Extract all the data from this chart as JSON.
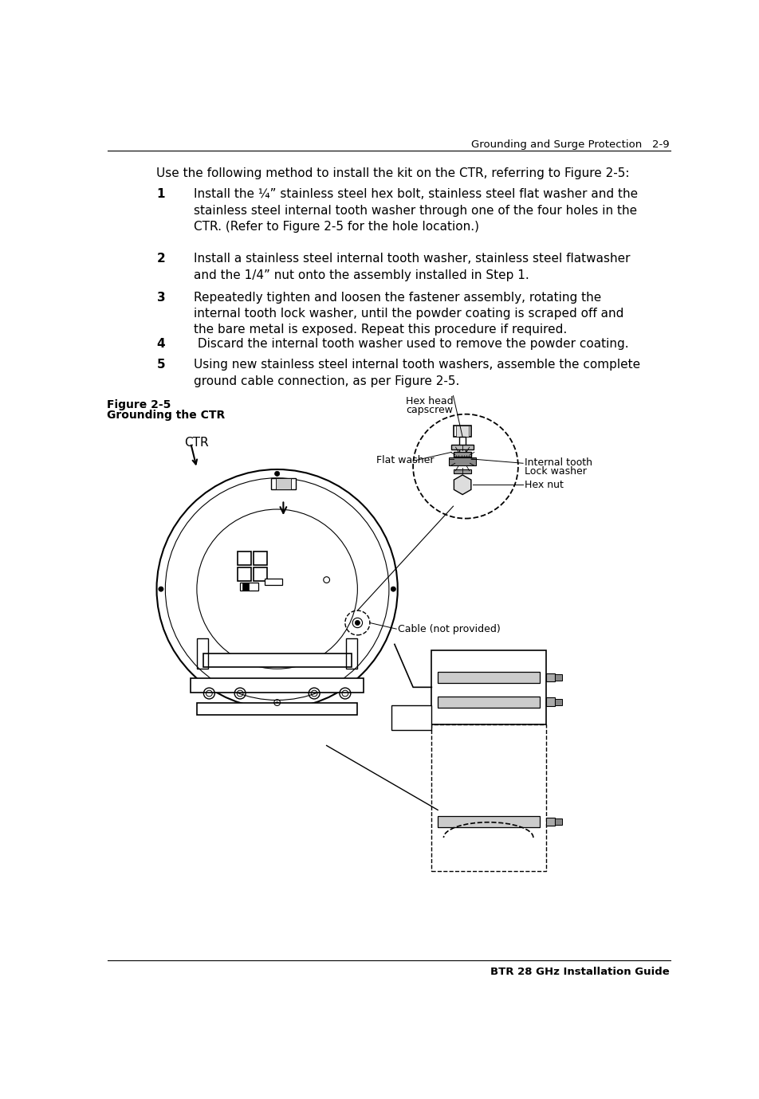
{
  "header_text": "Grounding and Surge Protection   2-9",
  "footer_text": "BTR 28 GHz Installation Guide",
  "intro_text": "Use the following method to install the kit on the CTR, referring to Figure 2-5:",
  "steps": [
    {
      "num": "1",
      "text": "Install the ¼” stainless steel hex bolt, stainless steel flat washer and the\nstainless steel internal tooth washer through one of the four holes in the\nCTR. (Refer to Figure 2-5 for the hole location.)"
    },
    {
      "num": "2",
      "text": "Install a stainless steel internal tooth washer, stainless steel flatwasher\nand the 1/4” nut onto the assembly installed in Step 1."
    },
    {
      "num": "3",
      "text": "Repeatedly tighten and loosen the fastener assembly, rotating the\ninternal tooth lock washer, until the powder coating is scraped off and\nthe bare metal is exposed. Repeat this procedure if required."
    },
    {
      "num": "4",
      "text": " Discard the internal tooth washer used to remove the powder coating."
    },
    {
      "num": "5",
      "text": "Using new stainless steel internal tooth washers, assemble the complete\nground cable connection, as per Figure 2-5."
    }
  ],
  "figure_label": "Figure 2-5",
  "figure_caption": "Grounding the CTR",
  "bg_color": "#ffffff",
  "text_color": "#000000"
}
